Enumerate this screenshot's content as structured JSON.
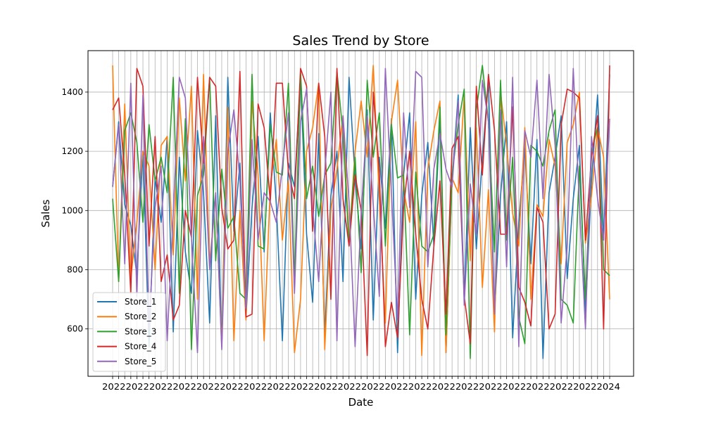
{
  "chart_data": {
    "type": "line",
    "title": "Sales Trend by Store",
    "xlabel": "Date",
    "ylabel": "Sales",
    "x_start": "2022-01-01",
    "x_end": "2024-05-31",
    "frequency": "weekly",
    "x_tick_text": "2022-01-01 … 2024-05-31 (dense, overlapping date labels)",
    "ylim": [
      440,
      1540
    ],
    "yticks": [
      600,
      800,
      1000,
      1200,
      1400
    ],
    "grid": true,
    "legend_position": "lower-left",
    "series": [
      {
        "name": "Store_1",
        "color": "#1f77b4",
        "values": [
          1080,
          1300,
          1020,
          950,
          780,
          1200,
          540,
          1110,
          960,
          1250,
          590,
          1180,
          860,
          720,
          1270,
          1060,
          620,
          1320,
          540,
          1450,
          930,
          1160,
          640,
          1010,
          1250,
          860,
          1330,
          1020,
          560,
          1160,
          1080,
          1450,
          920,
          690,
          1260,
          580,
          1050,
          1200,
          760,
          1450,
          1110,
          870,
          1340,
          630,
          1180,
          940,
          1310,
          520,
          1120,
          1330,
          700,
          1050,
          1230,
          880,
          1310,
          520,
          1100,
          1390,
          700,
          1280,
          870,
          1180,
          1440,
          650,
          1050,
          1300,
          570,
          960,
          1210,
          820,
          1240,
          500,
          1060,
          1180,
          1320,
          770,
          1040,
          1220,
          650,
          1100,
          1390,
          900,
          1460
        ]
      },
      {
        "name": "Store_2",
        "color": "#ff7f0e",
        "values": [
          1490,
          760,
          1360,
          770,
          960,
          1200,
          1150,
          800,
          1220,
          1250,
          850,
          1380,
          1100,
          1420,
          700,
          1460,
          820,
          1050,
          540,
          1350,
          560,
          1000,
          630,
          1370,
          1120,
          560,
          1080,
          1240,
          900,
          1100,
          520,
          700,
          1200,
          1280,
          1430,
          530,
          1000,
          1140,
          1320,
          900,
          1200,
          1370,
          1180,
          1490,
          1040,
          620,
          1300,
          1440,
          1070,
          960,
          1300,
          510,
          1140,
          1270,
          1370,
          520,
          1110,
          1060,
          1390,
          830,
          1280,
          740,
          1070,
          590,
          1400,
          1220,
          990,
          880,
          1280,
          700,
          1020,
          980,
          1240,
          1150,
          820,
          1230,
          1290,
          1400,
          890,
          1050,
          1280,
          1180,
          700
        ]
      },
      {
        "name": "Store_3",
        "color": "#2ca02c",
        "values": [
          1040,
          760,
          1270,
          1330,
          1230,
          960,
          1290,
          1100,
          1180,
          1060,
          1450,
          720,
          1310,
          530,
          1050,
          1120,
          1450,
          830,
          1140,
          940,
          980,
          720,
          700,
          1460,
          880,
          870,
          1290,
          1130,
          1120,
          1430,
          760,
          1470,
          1040,
          1150,
          980,
          1120,
          1160,
          1470,
          1260,
          880,
          1180,
          790,
          1440,
          1180,
          1330,
          880,
          1290,
          1110,
          1120,
          580,
          1130,
          880,
          860,
          920,
          1350,
          580,
          1120,
          1290,
          1410,
          500,
          1340,
          1490,
          1300,
          860,
          1440,
          900,
          1180,
          640,
          550,
          1220,
          1200,
          1150,
          1270,
          1340,
          700,
          680,
          620,
          1150,
          700,
          1200,
          1280,
          800,
          780
        ]
      },
      {
        "name": "Store_4",
        "color": "#d62728",
        "values": [
          1340,
          1380,
          1120,
          720,
          1480,
          1420,
          880,
          1250,
          760,
          850,
          630,
          680,
          1000,
          910,
          1450,
          1160,
          1450,
          1420,
          1010,
          870,
          900,
          1470,
          640,
          650,
          1360,
          1280,
          1030,
          1430,
          1430,
          1130,
          1040,
          1480,
          1420,
          930,
          1430,
          1250,
          700,
          1480,
          1040,
          880,
          1120,
          1000,
          510,
          1400,
          1130,
          540,
          690,
          570,
          1010,
          1200,
          920,
          700,
          600,
          880,
          1100,
          650,
          1210,
          1250,
          710,
          550,
          1420,
          1120,
          1460,
          1270,
          920,
          920,
          1350,
          740,
          690,
          610,
          1010,
          960,
          600,
          650,
          1290,
          1410,
          1400,
          1380,
          900,
          1180,
          1320,
          600,
          1490
        ]
      },
      {
        "name": "Store_5",
        "color": "#9467bd",
        "values": [
          1080,
          1290,
          820,
          1430,
          710,
          1390,
          600,
          1010,
          1150,
          560,
          990,
          1450,
          1380,
          910,
          520,
          1250,
          800,
          1060,
          530,
          1200,
          1340,
          1100,
          670,
          1240,
          900,
          1060,
          1030,
          960,
          1150,
          1330,
          720,
          1300,
          1410,
          1010,
          760,
          1130,
          1400,
          560,
          1320,
          1030,
          540,
          990,
          1320,
          1020,
          710,
          1480,
          1060,
          630,
          1330,
          1010,
          1470,
          1450,
          810,
          1140,
          1260,
          1140,
          1080,
          1370,
          680,
          1090,
          920,
          1440,
          1300,
          650,
          1340,
          810,
          1450,
          540,
          1270,
          1180,
          1440,
          1040,
          1460,
          1220,
          620,
          880,
          1480,
          1020,
          600,
          1250,
          1040,
          900,
          1310
        ]
      }
    ]
  }
}
